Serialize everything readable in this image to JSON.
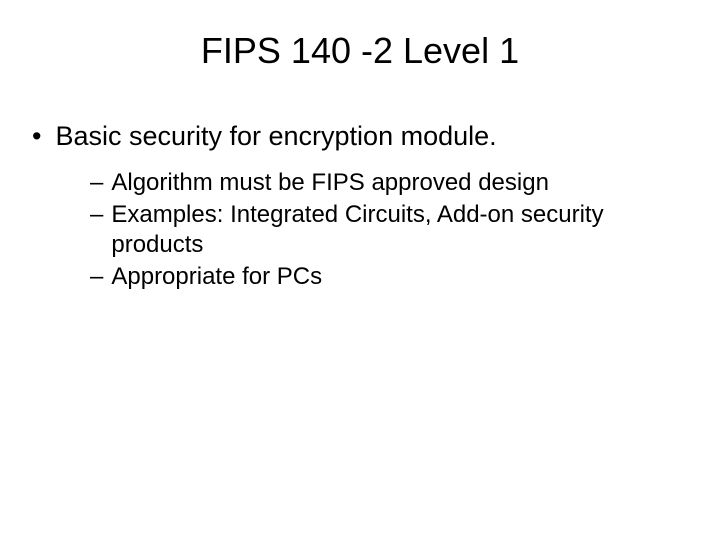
{
  "slide": {
    "title": "FIPS 140 -2 Level 1",
    "bullet_main": {
      "marker": "•",
      "text": "Basic security for encryption module."
    },
    "sub_bullets": [
      {
        "marker": "–",
        "text": "Algorithm must be FIPS approved design"
      },
      {
        "marker": "–",
        "text": "Examples: Integrated Circuits, Add-on security products"
      },
      {
        "marker": "–",
        "text": "Appropriate for PCs"
      }
    ],
    "colors": {
      "background": "#ffffff",
      "text": "#000000"
    },
    "fonts": {
      "title_size": 36,
      "body_size": 27,
      "sub_size": 24
    }
  }
}
